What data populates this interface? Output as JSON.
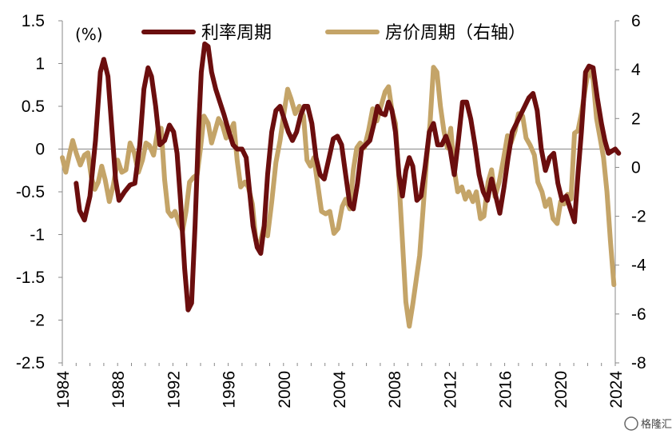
{
  "chart_data": {
    "type": "line",
    "unit_label": "(%)",
    "xlim": [
      1984,
      2024
    ],
    "x_ticks": [
      "1984",
      "1988",
      "1992",
      "1996",
      "2000",
      "2004",
      "2008",
      "2012",
      "2016",
      "2020",
      "2024"
    ],
    "y_left": {
      "lim": [
        -2.5,
        1.5
      ],
      "ticks": [
        "1.5",
        "1",
        "0.5",
        "0",
        "-0.5",
        "-1",
        "-1.5",
        "-2",
        "-2.5"
      ]
    },
    "y_right": {
      "lim": [
        -8,
        6
      ],
      "ticks": [
        "6",
        "4",
        "2",
        "0",
        "-2",
        "-4",
        "-6",
        "-8"
      ]
    },
    "series": [
      {
        "name": "利率周期",
        "axis": "left",
        "color": "#6b0e0e",
        "points": [
          [
            1985.0,
            -0.4
          ],
          [
            1985.25,
            -0.72
          ],
          [
            1985.6,
            -0.83
          ],
          [
            1986.0,
            -0.55
          ],
          [
            1986.4,
            0.1
          ],
          [
            1986.75,
            0.9
          ],
          [
            1987.0,
            1.05
          ],
          [
            1987.3,
            0.85
          ],
          [
            1987.6,
            0.2
          ],
          [
            1987.85,
            -0.35
          ],
          [
            1988.1,
            -0.6
          ],
          [
            1988.5,
            -0.5
          ],
          [
            1988.9,
            -0.42
          ],
          [
            1989.25,
            -0.4
          ],
          [
            1989.6,
            0.05
          ],
          [
            1989.9,
            0.7
          ],
          [
            1990.2,
            0.95
          ],
          [
            1990.45,
            0.85
          ],
          [
            1990.75,
            0.5
          ],
          [
            1991.05,
            0.05
          ],
          [
            1991.4,
            0.1
          ],
          [
            1991.75,
            0.28
          ],
          [
            1992.05,
            0.2
          ],
          [
            1992.3,
            -0.05
          ],
          [
            1992.55,
            -0.6
          ],
          [
            1992.85,
            -1.4
          ],
          [
            1993.1,
            -1.88
          ],
          [
            1993.35,
            -1.8
          ],
          [
            1993.6,
            -0.9
          ],
          [
            1993.85,
            0.2
          ],
          [
            1994.05,
            0.9
          ],
          [
            1994.3,
            1.23
          ],
          [
            1994.55,
            1.2
          ],
          [
            1994.8,
            0.9
          ],
          [
            1995.1,
            0.7
          ],
          [
            1995.4,
            0.55
          ],
          [
            1995.7,
            0.4
          ],
          [
            1996.05,
            0.2
          ],
          [
            1996.35,
            0.05
          ],
          [
            1996.65,
            0.0
          ],
          [
            1997.0,
            0.0
          ],
          [
            1997.3,
            -0.1
          ],
          [
            1997.55,
            -0.5
          ],
          [
            1997.8,
            -0.9
          ],
          [
            1998.1,
            -1.15
          ],
          [
            1998.35,
            -1.22
          ],
          [
            1998.6,
            -0.9
          ],
          [
            1998.85,
            -0.3
          ],
          [
            1999.15,
            0.2
          ],
          [
            1999.45,
            0.45
          ],
          [
            1999.75,
            0.5
          ],
          [
            2000.05,
            0.35
          ],
          [
            2000.35,
            0.2
          ],
          [
            2000.65,
            0.1
          ],
          [
            2000.95,
            0.2
          ],
          [
            2001.25,
            0.4
          ],
          [
            2001.5,
            0.5
          ],
          [
            2001.75,
            0.5
          ],
          [
            2002.05,
            0.3
          ],
          [
            2002.35,
            -0.1
          ],
          [
            2002.65,
            -0.3
          ],
          [
            2002.95,
            -0.35
          ],
          [
            2003.3,
            -0.1
          ],
          [
            2003.6,
            0.12
          ],
          [
            2003.9,
            0.15
          ],
          [
            2004.2,
            0.05
          ],
          [
            2004.5,
            -0.3
          ],
          [
            2004.8,
            -0.65
          ],
          [
            2005.05,
            -0.7
          ],
          [
            2005.35,
            -0.4
          ],
          [
            2005.65,
            0.0
          ],
          [
            2005.95,
            0.05
          ],
          [
            2006.25,
            0.1
          ],
          [
            2006.55,
            0.3
          ],
          [
            2006.8,
            0.5
          ],
          [
            2007.05,
            0.42
          ],
          [
            2007.35,
            0.4
          ],
          [
            2007.6,
            0.55
          ],
          [
            2007.85,
            0.45
          ],
          [
            2008.1,
            0.2
          ],
          [
            2008.35,
            -0.3
          ],
          [
            2008.6,
            -0.55
          ],
          [
            2008.85,
            -0.25
          ],
          [
            2009.1,
            -0.1
          ],
          [
            2009.35,
            -0.2
          ],
          [
            2009.65,
            -0.6
          ],
          [
            2009.95,
            -0.55
          ],
          [
            2010.25,
            -0.2
          ],
          [
            2010.55,
            0.2
          ],
          [
            2010.85,
            0.3
          ],
          [
            2011.15,
            0.05
          ],
          [
            2011.45,
            0.05
          ],
          [
            2011.75,
            0.15
          ],
          [
            2012.05,
            0.0
          ],
          [
            2012.35,
            -0.3
          ],
          [
            2012.65,
            0.1
          ],
          [
            2012.95,
            0.55
          ],
          [
            2013.25,
            0.55
          ],
          [
            2013.55,
            0.35
          ],
          [
            2013.85,
            0.05
          ],
          [
            2014.15,
            -0.3
          ],
          [
            2014.45,
            -0.5
          ],
          [
            2014.75,
            -0.6
          ],
          [
            2015.05,
            -0.35
          ],
          [
            2015.35,
            -0.55
          ],
          [
            2015.65,
            -0.75
          ],
          [
            2015.95,
            -0.45
          ],
          [
            2016.25,
            -0.1
          ],
          [
            2016.55,
            0.2
          ],
          [
            2016.85,
            0.3
          ],
          [
            2017.15,
            0.4
          ],
          [
            2017.45,
            0.5
          ],
          [
            2017.75,
            0.6
          ],
          [
            2018.05,
            0.65
          ],
          [
            2018.35,
            0.45
          ],
          [
            2018.65,
            0.0
          ],
          [
            2018.95,
            -0.25
          ],
          [
            2019.25,
            -0.1
          ],
          [
            2019.55,
            -0.05
          ],
          [
            2019.85,
            -0.4
          ],
          [
            2020.15,
            -0.6
          ],
          [
            2020.45,
            -0.55
          ],
          [
            2020.75,
            -0.7
          ],
          [
            2021.05,
            -0.85
          ],
          [
            2021.3,
            -0.3
          ],
          [
            2021.55,
            0.2
          ],
          [
            2021.85,
            0.9
          ],
          [
            2022.1,
            0.97
          ],
          [
            2022.4,
            0.95
          ],
          [
            2022.7,
            0.6
          ],
          [
            2023.0,
            0.3
          ],
          [
            2023.25,
            0.1
          ],
          [
            2023.5,
            -0.05
          ],
          [
            2023.8,
            -0.02
          ],
          [
            2024.0,
            0.0
          ],
          [
            2024.25,
            -0.05
          ]
        ]
      },
      {
        "name": "房价周期（右轴）",
        "axis": "right",
        "color": "#c4a468",
        "points": [
          [
            1984.0,
            0.4
          ],
          [
            1984.25,
            -0.2
          ],
          [
            1984.5,
            0.5
          ],
          [
            1984.75,
            1.1
          ],
          [
            1985.0,
            0.6
          ],
          [
            1985.3,
            0.1
          ],
          [
            1985.6,
            0.5
          ],
          [
            1985.85,
            0.6
          ],
          [
            1986.1,
            -0.4
          ],
          [
            1986.35,
            -0.9
          ],
          [
            1986.6,
            -0.6
          ],
          [
            1986.85,
            0.05
          ],
          [
            1987.1,
            -0.5
          ],
          [
            1987.4,
            -1.4
          ],
          [
            1987.7,
            -0.7
          ],
          [
            1988.0,
            0.3
          ],
          [
            1988.3,
            -0.2
          ],
          [
            1988.6,
            -0.1
          ],
          [
            1988.9,
            1.0
          ],
          [
            1989.2,
            0.6
          ],
          [
            1989.5,
            -0.2
          ],
          [
            1989.8,
            0.3
          ],
          [
            1990.05,
            1.0
          ],
          [
            1990.3,
            0.9
          ],
          [
            1990.6,
            0.5
          ],
          [
            1990.9,
            1.5
          ],
          [
            1991.15,
            1.6
          ],
          [
            1991.4,
            -0.5
          ],
          [
            1991.65,
            -1.8
          ],
          [
            1991.9,
            -2.0
          ],
          [
            1992.15,
            -1.8
          ],
          [
            1992.45,
            -2.3
          ],
          [
            1992.7,
            -2.6
          ],
          [
            1992.95,
            -1.8
          ],
          [
            1993.2,
            -0.6
          ],
          [
            1993.5,
            -0.4
          ],
          [
            1993.75,
            -0.3
          ],
          [
            1994.0,
            0.8
          ],
          [
            1994.25,
            2.1
          ],
          [
            1994.55,
            1.8
          ],
          [
            1994.8,
            1.0
          ],
          [
            1995.05,
            1.5
          ],
          [
            1995.3,
            2.0
          ],
          [
            1995.6,
            1.7
          ],
          [
            1995.85,
            1.2
          ],
          [
            1996.15,
            1.5
          ],
          [
            1996.4,
            1.8
          ],
          [
            1996.65,
            0.3
          ],
          [
            1996.9,
            -0.8
          ],
          [
            1997.2,
            -0.6
          ],
          [
            1997.45,
            -0.8
          ],
          [
            1997.75,
            -1.5
          ],
          [
            1998.0,
            -3.0
          ],
          [
            1998.3,
            -3.1
          ],
          [
            1998.6,
            -2.4
          ],
          [
            1998.85,
            -2.8
          ],
          [
            1999.15,
            -1.4
          ],
          [
            1999.45,
            0.2
          ],
          [
            1999.75,
            1.1
          ],
          [
            2000.0,
            2.1
          ],
          [
            2000.3,
            3.2
          ],
          [
            2000.55,
            2.8
          ],
          [
            2000.85,
            2.2
          ],
          [
            2001.15,
            2.5
          ],
          [
            2001.45,
            2.1
          ],
          [
            2001.7,
            0.3
          ],
          [
            2001.95,
            0.05
          ],
          [
            2002.2,
            0.4
          ],
          [
            2002.45,
            -0.6
          ],
          [
            2002.75,
            -1.8
          ],
          [
            2003.05,
            -1.9
          ],
          [
            2003.35,
            -1.8
          ],
          [
            2003.65,
            -2.7
          ],
          [
            2003.95,
            -2.5
          ],
          [
            2004.25,
            -1.6
          ],
          [
            2004.5,
            -1.3
          ],
          [
            2004.8,
            -1.7
          ],
          [
            2005.05,
            -0.1
          ],
          [
            2005.3,
            0.8
          ],
          [
            2005.55,
            1.0
          ],
          [
            2005.85,
            0.8
          ],
          [
            2006.15,
            1.5
          ],
          [
            2006.45,
            2.4
          ],
          [
            2006.75,
            1.9
          ],
          [
            2007.05,
            2.5
          ],
          [
            2007.35,
            3.1
          ],
          [
            2007.6,
            3.3
          ],
          [
            2007.85,
            2.3
          ],
          [
            2008.1,
            1.8
          ],
          [
            2008.35,
            -0.5
          ],
          [
            2008.6,
            -3.0
          ],
          [
            2008.85,
            -5.5
          ],
          [
            2009.1,
            -6.5
          ],
          [
            2009.35,
            -5.6
          ],
          [
            2009.6,
            -4.6
          ],
          [
            2009.85,
            -3.6
          ],
          [
            2010.1,
            -1.7
          ],
          [
            2010.35,
            0.3
          ],
          [
            2010.6,
            1.8
          ],
          [
            2010.85,
            4.1
          ],
          [
            2011.1,
            3.9
          ],
          [
            2011.35,
            2.5
          ],
          [
            2011.6,
            1.5
          ],
          [
            2011.85,
            0.8
          ],
          [
            2012.1,
            1.6
          ],
          [
            2012.35,
            -0.1
          ],
          [
            2012.6,
            -1.0
          ],
          [
            2012.9,
            -0.8
          ],
          [
            2013.15,
            -1.3
          ],
          [
            2013.4,
            -1.0
          ],
          [
            2013.7,
            -1.4
          ],
          [
            2013.95,
            -1.0
          ],
          [
            2014.25,
            -2.1
          ],
          [
            2014.5,
            -2.0
          ],
          [
            2014.8,
            -0.6
          ],
          [
            2015.05,
            -0.1
          ],
          [
            2015.3,
            -1.2
          ],
          [
            2015.6,
            -0.6
          ],
          [
            2015.9,
            0.3
          ],
          [
            2016.2,
            1.3
          ],
          [
            2016.45,
            1.0
          ],
          [
            2016.75,
            1.5
          ],
          [
            2017.0,
            2.2
          ],
          [
            2017.3,
            2.1
          ],
          [
            2017.55,
            1.2
          ],
          [
            2017.85,
            0.9
          ],
          [
            2018.15,
            0.5
          ],
          [
            2018.4,
            -0.6
          ],
          [
            2018.7,
            -1.0
          ],
          [
            2018.95,
            -1.6
          ],
          [
            2019.25,
            -1.3
          ],
          [
            2019.5,
            -2.1
          ],
          [
            2019.8,
            -2.3
          ],
          [
            2020.05,
            -1.4
          ],
          [
            2020.3,
            -1.5
          ],
          [
            2020.55,
            -1.1
          ],
          [
            2020.8,
            -1.3
          ],
          [
            2021.05,
            1.4
          ],
          [
            2021.3,
            1.5
          ],
          [
            2021.55,
            2.2
          ],
          [
            2021.85,
            3.3
          ],
          [
            2022.1,
            4.1
          ],
          [
            2022.4,
            3.6
          ],
          [
            2022.65,
            2.0
          ],
          [
            2022.9,
            1.2
          ],
          [
            2023.15,
            0.4
          ],
          [
            2023.4,
            -1.0
          ],
          [
            2023.65,
            -3.0
          ],
          [
            2023.9,
            -4.8
          ]
        ]
      }
    ],
    "watermark": "格隆汇"
  }
}
